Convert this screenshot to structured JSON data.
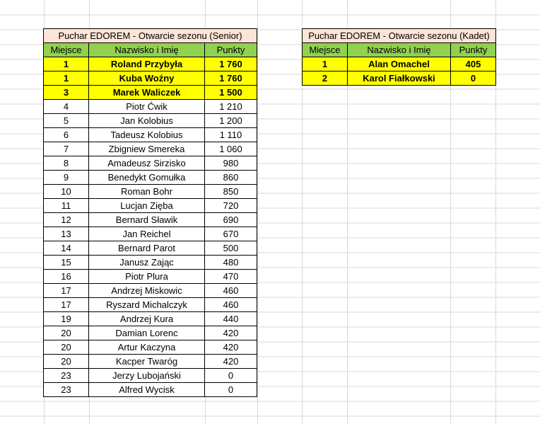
{
  "senior": {
    "title": "Puchar EDOREM - Otwarcie sezonu (Senior)",
    "headers": [
      "Miejsce",
      "Nazwisko i Imię",
      "Punkty"
    ],
    "rows": [
      {
        "place": "1",
        "name": "Roland Przybyła",
        "points": "1 760",
        "highlight": true
      },
      {
        "place": "1",
        "name": "Kuba Woźny",
        "points": "1 760",
        "highlight": true
      },
      {
        "place": "3",
        "name": "Marek Waliczek",
        "points": "1 500",
        "highlight": true
      },
      {
        "place": "4",
        "name": "Piotr Ćwik",
        "points": "1 210"
      },
      {
        "place": "5",
        "name": "Jan Kolobius",
        "points": "1 200"
      },
      {
        "place": "6",
        "name": "Tadeusz Kolobius",
        "points": "1 110"
      },
      {
        "place": "7",
        "name": "Zbigniew Smereka",
        "points": "1 060"
      },
      {
        "place": "8",
        "name": "Amadeusz Sirzisko",
        "points": "980"
      },
      {
        "place": "9",
        "name": "Benedykt Gomułka",
        "points": "860"
      },
      {
        "place": "10",
        "name": "Roman Bohr",
        "points": "850"
      },
      {
        "place": "11",
        "name": "Lucjan Zięba",
        "points": "720"
      },
      {
        "place": "12",
        "name": "Bernard Sławik",
        "points": "690"
      },
      {
        "place": "13",
        "name": "Jan Reichel",
        "points": "670"
      },
      {
        "place": "14",
        "name": "Bernard Parot",
        "points": "500"
      },
      {
        "place": "15",
        "name": "Janusz Zając",
        "points": "480"
      },
      {
        "place": "16",
        "name": "Piotr Plura",
        "points": "470"
      },
      {
        "place": "17",
        "name": "Andrzej Miskowic",
        "points": "460"
      },
      {
        "place": "17",
        "name": "Ryszard Michalczyk",
        "points": "460"
      },
      {
        "place": "19",
        "name": "Andrzej Kura",
        "points": "440"
      },
      {
        "place": "20",
        "name": "Damian Lorenc",
        "points": "420"
      },
      {
        "place": "20",
        "name": "Artur Kaczyna",
        "points": "420"
      },
      {
        "place": "20",
        "name": "Kacper Twaróg",
        "points": "420"
      },
      {
        "place": "23",
        "name": "Jerzy Lubojański",
        "points": "0"
      },
      {
        "place": "23",
        "name": "Alfred Wycisk",
        "points": "0"
      }
    ]
  },
  "kadet": {
    "title": "Puchar EDOREM - Otwarcie sezonu (Kadet)",
    "headers": [
      "Miejsce",
      "Nazwisko i Imię",
      "Punkty"
    ],
    "rows": [
      {
        "place": "1",
        "name": "Alan Omachel",
        "points": "405",
        "highlight": true
      },
      {
        "place": "2",
        "name": "Karol Fiałkowski",
        "points": "0",
        "highlight": true
      }
    ]
  },
  "colors": {
    "title_bg": "#fce4d6",
    "header_bg": "#92d050",
    "highlight_bg": "#ffff00",
    "gridline": "#d9d9d9"
  }
}
